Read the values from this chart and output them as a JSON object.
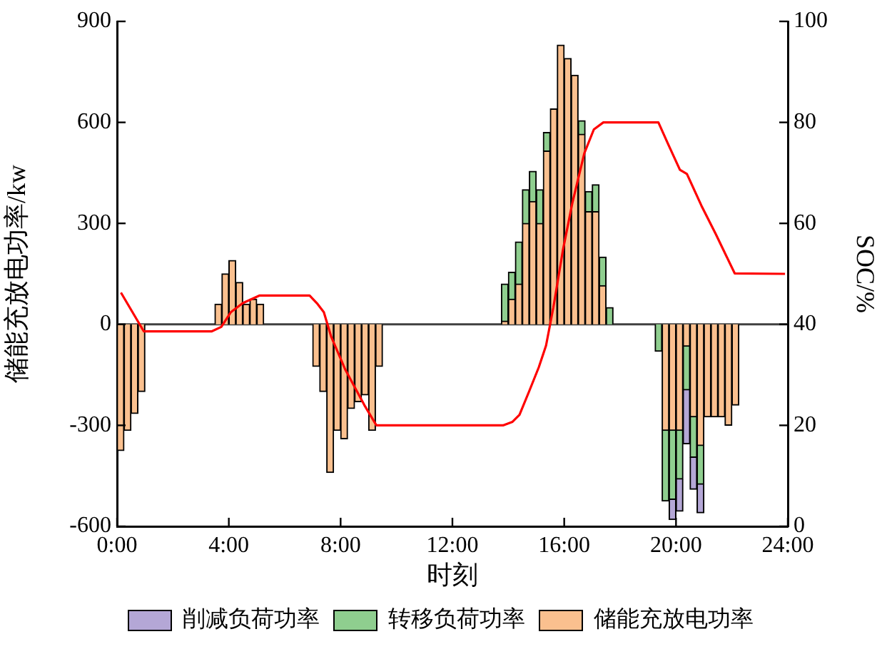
{
  "chart_data": {
    "type": "bar",
    "stacked": true,
    "xlabel": "时刻",
    "ylabel": "储能充放电功率/kw",
    "y2label": "SOC/%",
    "x": [
      0.125,
      0.375,
      0.625,
      0.875,
      3.625,
      3.875,
      4.125,
      4.375,
      4.625,
      4.875,
      5.125,
      7.125,
      7.375,
      7.625,
      7.875,
      8.125,
      8.375,
      8.625,
      8.875,
      9.125,
      9.375,
      13.875,
      14.125,
      14.375,
      14.625,
      14.875,
      15.125,
      15.375,
      15.625,
      15.875,
      16.125,
      16.375,
      16.625,
      16.875,
      17.125,
      17.375,
      17.625,
      19.375,
      19.625,
      19.875,
      20.125,
      20.375,
      20.625,
      20.875,
      21.125,
      21.375,
      21.625,
      21.875,
      22.125
    ],
    "series": [
      {
        "name": "储能充放电功率",
        "color": "#fac08f",
        "values": [
          -375,
          -315,
          -265,
          -200,
          60,
          150,
          190,
          125,
          60,
          75,
          60,
          -125,
          -200,
          -440,
          -315,
          -340,
          -250,
          -230,
          -210,
          -315,
          -125,
          10,
          75,
          120,
          300,
          365,
          300,
          515,
          640,
          830,
          790,
          740,
          565,
          335,
          335,
          115,
          null,
          null,
          -315,
          -315,
          -315,
          -65,
          -275,
          -360,
          -275,
          -275,
          -275,
          -300,
          -240
        ]
      },
      {
        "name": "转移负荷功率",
        "color": "#8fce8f",
        "values": [
          null,
          null,
          null,
          null,
          null,
          null,
          null,
          null,
          null,
          null,
          null,
          null,
          null,
          null,
          null,
          null,
          null,
          null,
          null,
          null,
          null,
          110,
          80,
          125,
          100,
          90,
          100,
          55,
          null,
          null,
          null,
          null,
          40,
          60,
          80,
          85,
          50,
          -80,
          -210,
          -205,
          -145,
          -130,
          -120,
          -115,
          null,
          null,
          null,
          null,
          null
        ]
      },
      {
        "name": "削减负荷功率",
        "color": "#b4a7d6",
        "values": [
          null,
          null,
          null,
          null,
          null,
          null,
          null,
          null,
          null,
          null,
          null,
          null,
          null,
          null,
          null,
          null,
          null,
          null,
          null,
          null,
          null,
          null,
          null,
          null,
          null,
          null,
          null,
          null,
          null,
          null,
          null,
          null,
          null,
          null,
          null,
          null,
          null,
          null,
          null,
          -60,
          -95,
          -160,
          -95,
          -85,
          null,
          null,
          null,
          null,
          null
        ]
      },
      {
        "type": "line",
        "axis": "y2",
        "color": "#ff0000",
        "x": [
          0.14,
          0.96,
          3.38,
          3.73,
          4.07,
          4.5,
          5.09,
          6.89,
          7.15,
          7.4,
          7.66,
          8.17,
          8.85,
          9.28,
          13.81,
          14.15,
          14.4,
          14.75,
          15.09,
          15.35,
          15.61,
          15.95,
          16.29,
          16.72,
          17.06,
          17.4,
          19.37,
          19.71,
          20.14,
          20.39,
          20.91,
          21.42,
          22.1,
          23.9
        ],
        "values": [
          46.3,
          38.6,
          38.6,
          39.5,
          42.4,
          44.2,
          45.7,
          45.7,
          44.2,
          42.4,
          37.6,
          31,
          24,
          20,
          20,
          20.7,
          22.1,
          26.8,
          31.5,
          35.8,
          43.3,
          54.6,
          64,
          73.9,
          78.6,
          80,
          80,
          75.8,
          70.6,
          69.8,
          63.5,
          57.9,
          50.1,
          50
        ]
      }
    ],
    "xlim": [
      0,
      24
    ],
    "xticks": [
      {
        "value": 0,
        "label": "0:00"
      },
      {
        "value": 4,
        "label": "4:00"
      },
      {
        "value": 8,
        "label": "8:00"
      },
      {
        "value": 12,
        "label": "12:00"
      },
      {
        "value": 16,
        "label": "16:00"
      },
      {
        "value": 20,
        "label": "20:00"
      },
      {
        "value": 24,
        "label": "24:00"
      }
    ],
    "ylim": [
      -600,
      900
    ],
    "yticks": [
      -600,
      -300,
      0,
      300,
      600,
      900
    ],
    "y2lim": [
      0,
      100
    ],
    "y2ticks": [
      0,
      20,
      40,
      60,
      80,
      100
    ],
    "ref_lines": [
      {
        "axis": "y",
        "value": 0,
        "color": "#404040"
      }
    ],
    "marker": "none",
    "legend": "bottom"
  }
}
